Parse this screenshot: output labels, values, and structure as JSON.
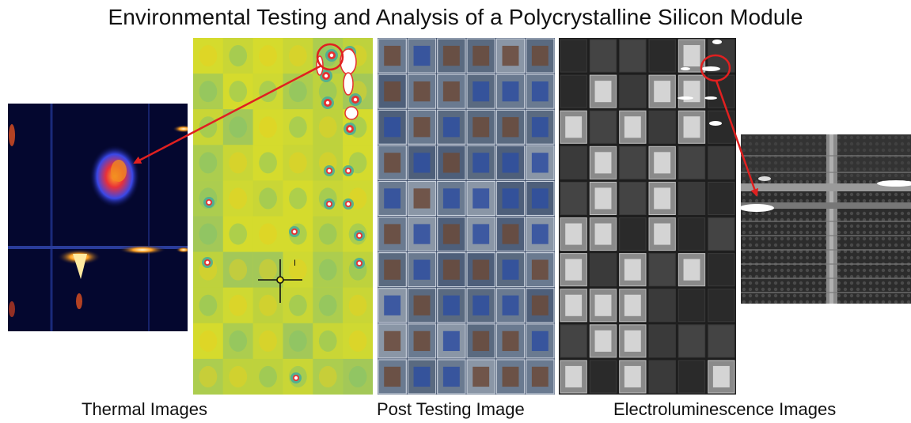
{
  "title": "Environmental Testing and Analysis of a Polycrystalline Silicon Module",
  "captions": {
    "thermal": "Thermal Images",
    "post": "Post Testing Image",
    "el": "Electroluminescence Images"
  },
  "thermal_marker_label": "I"
}
